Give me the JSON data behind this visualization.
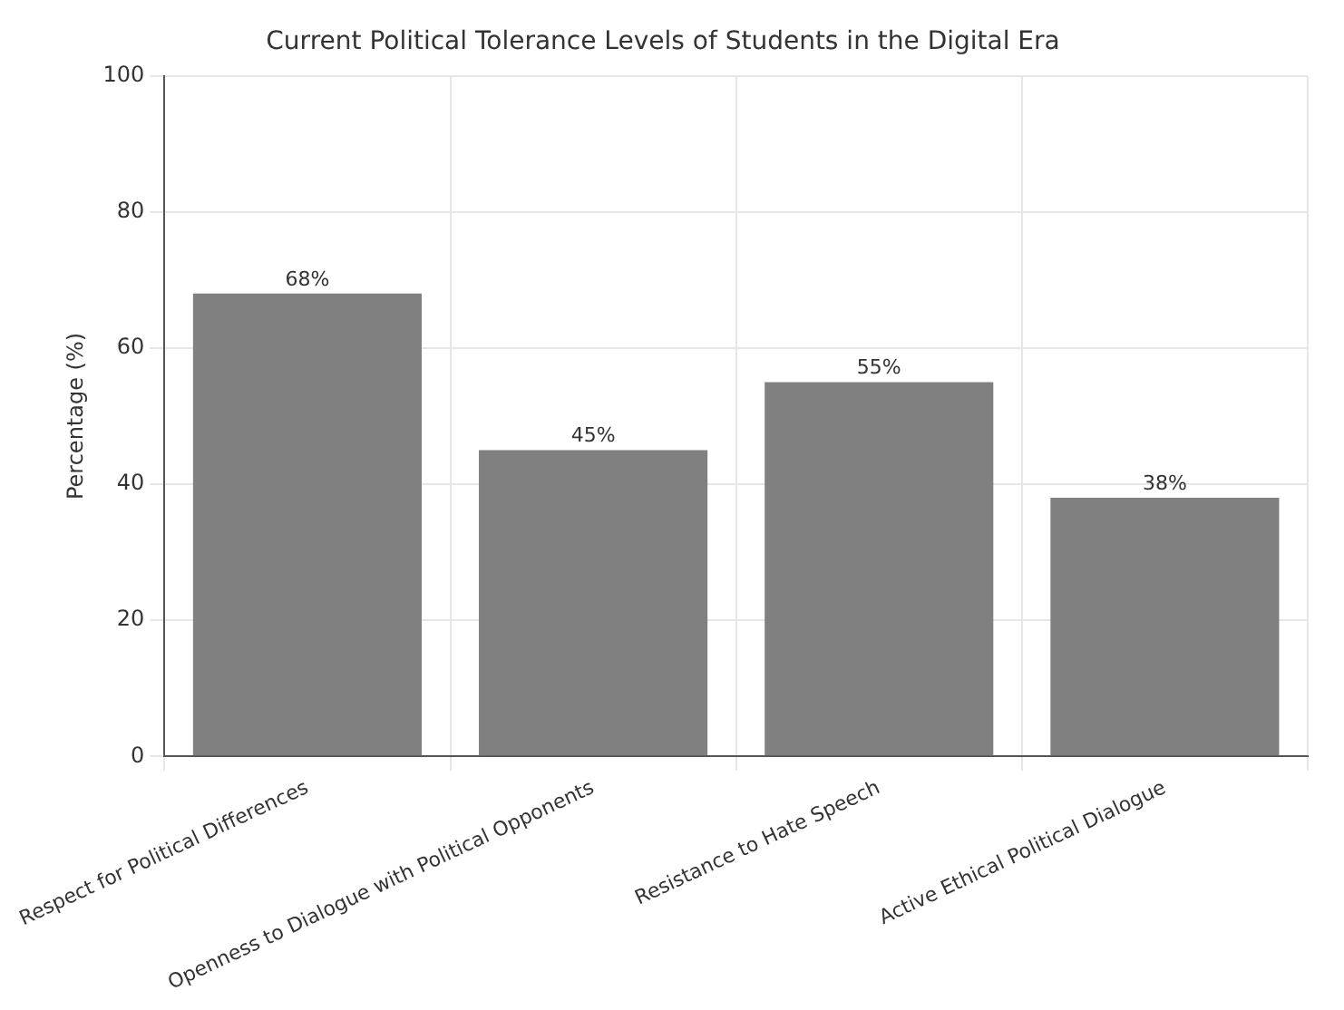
{
  "chart_data": {
    "type": "bar",
    "title": "Current Political Tolerance Levels of Students in the Digital Era",
    "ylabel": "Percentage (%)",
    "categories": [
      "Respect for Political Differences",
      "Openness to Dialogue with Political Opponents",
      "Resistance to Hate Speech",
      "Active Ethical Political Dialogue"
    ],
    "values": [
      68,
      45,
      55,
      38
    ],
    "color": "#808080",
    "value_labels": [
      "68%",
      "45%",
      "55%",
      "38%"
    ],
    "ylim": [
      0,
      100
    ],
    "yticks": [
      0,
      20,
      40,
      60,
      80,
      100
    ],
    "grid": true
  }
}
